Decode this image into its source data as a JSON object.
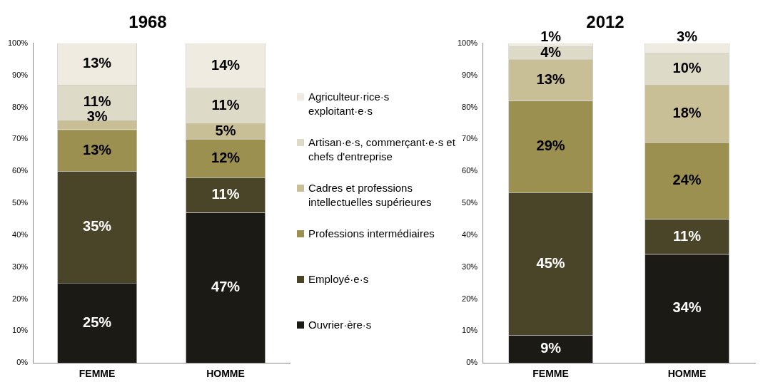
{
  "chart_data": [
    {
      "type": "bar",
      "title": "1968",
      "stacked": true,
      "legend": "right",
      "categories": [
        "FEMME",
        "HOMME"
      ],
      "ylim": [
        0,
        100
      ],
      "yticks": [
        {
          "value": 0,
          "label": "0%"
        },
        {
          "value": 10,
          "label": "10%"
        },
        {
          "value": 20,
          "label": "20%"
        },
        {
          "value": 30,
          "label": "30%"
        },
        {
          "value": 40,
          "label": "40%"
        },
        {
          "value": 50,
          "label": "50%"
        },
        {
          "value": 60,
          "label": "60%"
        },
        {
          "value": 70,
          "label": "70%"
        },
        {
          "value": 80,
          "label": "80%"
        },
        {
          "value": 90,
          "label": "90%"
        },
        {
          "value": 100,
          "label": "100%"
        }
      ],
      "series": [
        {
          "name": "Ouvrier·ère·s",
          "color": "#1c1a14",
          "values": [
            25,
            47
          ],
          "value_labels": [
            "25%",
            "47%"
          ]
        },
        {
          "name": "Employé·e·s",
          "color": "#4a4428",
          "values": [
            35,
            11
          ],
          "value_labels": [
            "35%",
            "11%"
          ]
        },
        {
          "name": "Professions intermédiaires",
          "color": "#9c9050",
          "values": [
            13,
            12
          ],
          "value_labels": [
            "13%",
            "12%"
          ]
        },
        {
          "name": "Cadres et professions intellectuelles supérieures",
          "color": "#c8bf96",
          "values": [
            3,
            5
          ],
          "value_labels": [
            "3%",
            "5%"
          ]
        },
        {
          "name": "Artisan·e·s, commerçant·e·s et chefs d'entreprise",
          "color": "#dedac8",
          "values": [
            11,
            11
          ],
          "value_labels": [
            "11%",
            "11%"
          ]
        },
        {
          "name": "Agriculteur·rice·s exploitant·e·s",
          "color": "#efebe0",
          "values": [
            13,
            14
          ],
          "value_labels": [
            "13%",
            "14%"
          ]
        }
      ]
    },
    {
      "type": "bar",
      "title": "2012",
      "stacked": true,
      "categories": [
        "FEMME",
        "HOMME"
      ],
      "ylim": [
        0,
        100
      ],
      "yticks": [
        {
          "value": 0,
          "label": "0%"
        },
        {
          "value": 10,
          "label": "10%"
        },
        {
          "value": 20,
          "label": "20%"
        },
        {
          "value": 30,
          "label": "30%"
        },
        {
          "value": 40,
          "label": "40%"
        },
        {
          "value": 50,
          "label": "50%"
        },
        {
          "value": 60,
          "label": "60%"
        },
        {
          "value": 70,
          "label": "70%"
        },
        {
          "value": 80,
          "label": "80%"
        },
        {
          "value": 90,
          "label": "90%"
        },
        {
          "value": 100,
          "label": "100%"
        }
      ],
      "series": [
        {
          "color": "#1c1a14",
          "values": [
            8.7,
            34
          ],
          "value_labels": [
            "9%",
            "34%"
          ]
        },
        {
          "color": "#4a4428",
          "values": [
            44.6,
            11
          ],
          "value_labels": [
            "45%",
            "11%"
          ]
        },
        {
          "color": "#9c9050",
          "values": [
            28.7,
            24
          ],
          "value_labels": [
            "29%",
            "24%"
          ]
        },
        {
          "color": "#c8bf96",
          "values": [
            13,
            18
          ],
          "value_labels": [
            "13%",
            "18%"
          ]
        },
        {
          "color": "#dedac8",
          "values": [
            4,
            10
          ],
          "value_labels": [
            "4%",
            "10%"
          ]
        },
        {
          "color": "#efebe0",
          "values": [
            1,
            3
          ],
          "value_labels": [
            "1%",
            "3%"
          ]
        }
      ]
    }
  ]
}
